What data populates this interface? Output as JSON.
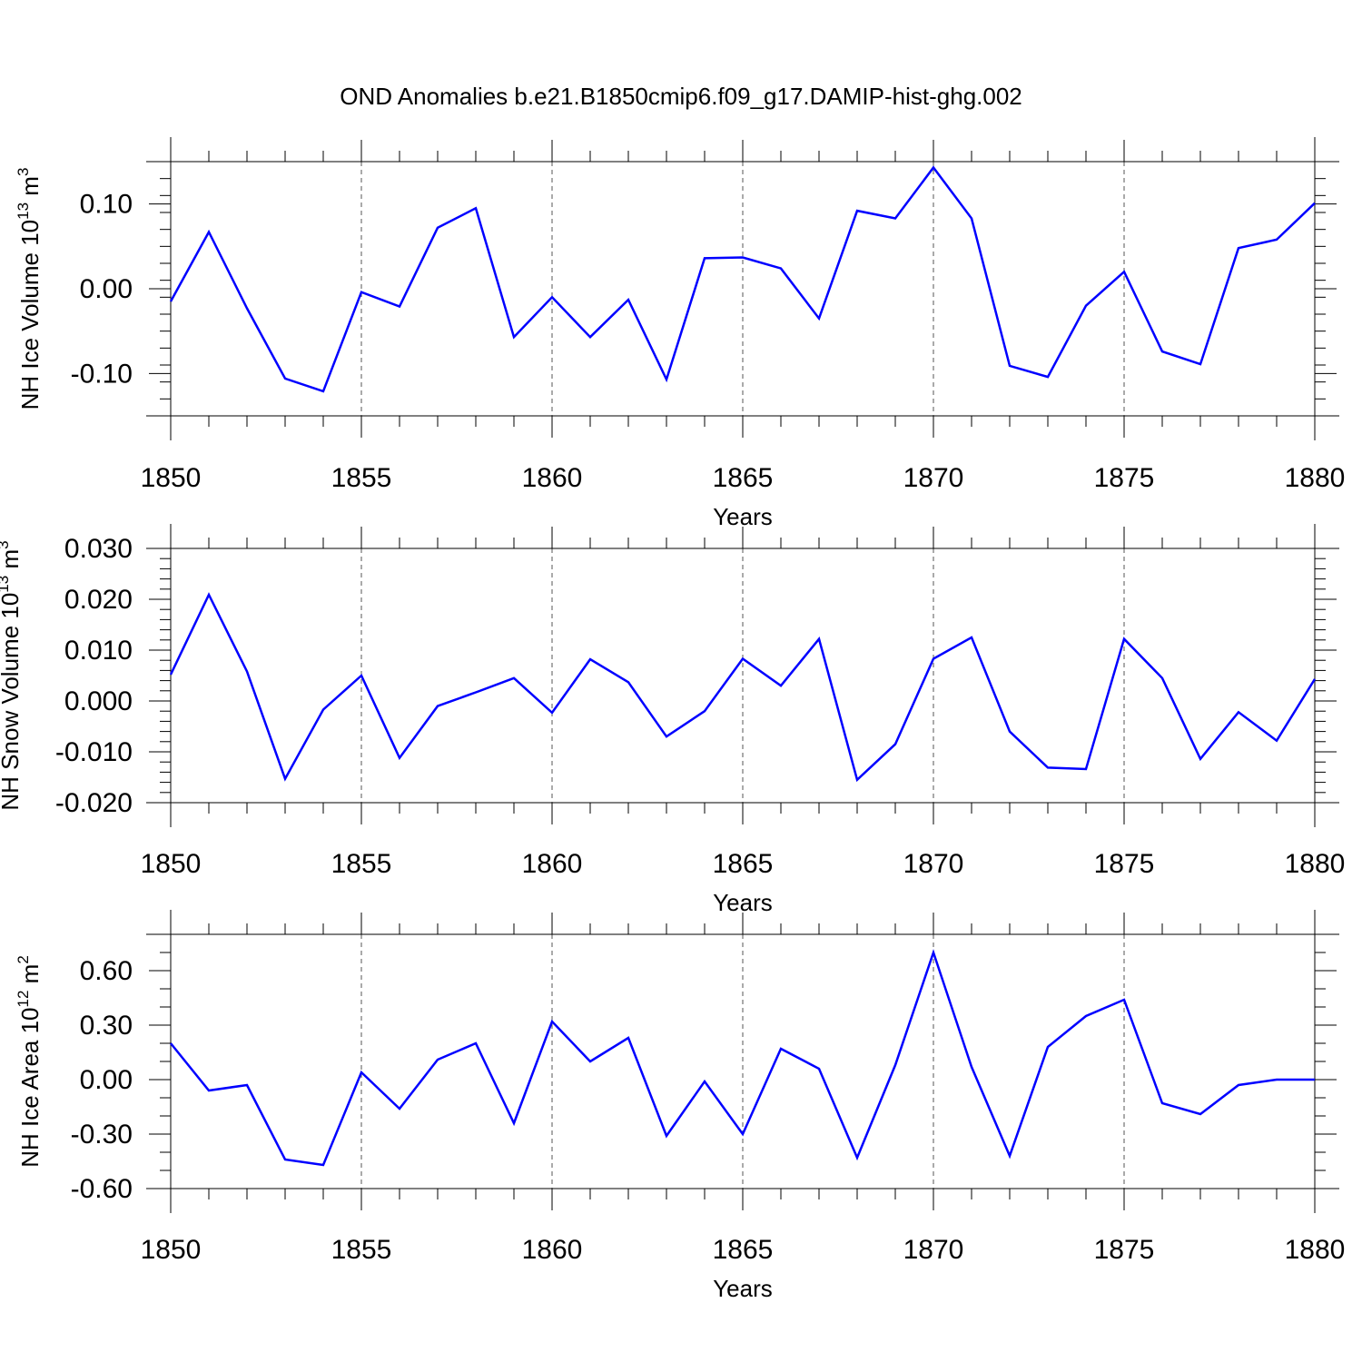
{
  "title": "OND Anomalies b.e21.B1850cmip6.f09_g17.DAMIP-hist-ghg.002",
  "line_color": "#0000ff",
  "chart_data": [
    {
      "type": "line",
      "xlabel": "Years",
      "ylabel": {
        "prefix": "NH Ice Volume 10",
        "exp": "13",
        "unit": " m",
        "unit_exp": "3"
      },
      "xlim": [
        1850,
        1880
      ],
      "ylim": [
        -0.15,
        0.15
      ],
      "grid": "vertical dashed at x major ticks",
      "xticks": [
        "1850",
        "1855",
        "1860",
        "1865",
        "1870",
        "1875",
        "1880"
      ],
      "yticks": [
        {
          "v": 0.1,
          "label": "0.10"
        },
        {
          "v": 0.0,
          "label": "0.00"
        },
        {
          "v": -0.1,
          "label": "-0.10"
        }
      ],
      "minor_y_step": 0.02,
      "x": [
        1850,
        1851,
        1852,
        1853,
        1854,
        1855,
        1856,
        1857,
        1858,
        1859,
        1860,
        1861,
        1862,
        1863,
        1864,
        1865,
        1866,
        1867,
        1868,
        1869,
        1870,
        1871,
        1872,
        1873,
        1874,
        1875,
        1876,
        1877,
        1878,
        1879,
        1880
      ],
      "y": [
        -0.015,
        0.067,
        -0.023,
        -0.106,
        -0.121,
        -0.004,
        -0.021,
        0.072,
        0.095,
        -0.057,
        -0.01,
        -0.057,
        -0.013,
        -0.107,
        0.036,
        0.037,
        0.024,
        -0.035,
        0.092,
        0.083,
        0.143,
        0.083,
        -0.091,
        -0.104,
        -0.02,
        0.02,
        -0.074,
        -0.089,
        0.048,
        0.058,
        0.101
      ]
    },
    {
      "type": "line",
      "xlabel": "Years",
      "ylabel": {
        "prefix": "NH Snow Volume 10",
        "exp": "13",
        "unit": " m",
        "unit_exp": "3"
      },
      "xlim": [
        1850,
        1880
      ],
      "ylim": [
        -0.02,
        0.03
      ],
      "grid": "vertical dashed at x major ticks",
      "xticks": [
        "1850",
        "1855",
        "1860",
        "1865",
        "1870",
        "1875",
        "1880"
      ],
      "yticks": [
        {
          "v": 0.03,
          "label": "0.030"
        },
        {
          "v": 0.02,
          "label": "0.020"
        },
        {
          "v": 0.01,
          "label": "0.010"
        },
        {
          "v": 0.0,
          "label": "0.000"
        },
        {
          "v": -0.01,
          "label": "-0.010"
        },
        {
          "v": -0.02,
          "label": "-0.020"
        }
      ],
      "minor_y_step": 0.002,
      "x": [
        1850,
        1851,
        1852,
        1853,
        1854,
        1855,
        1856,
        1857,
        1858,
        1859,
        1860,
        1861,
        1862,
        1863,
        1864,
        1865,
        1866,
        1867,
        1868,
        1869,
        1870,
        1871,
        1872,
        1873,
        1874,
        1875,
        1876,
        1877,
        1878,
        1879,
        1880
      ],
      "y": [
        0.0052,
        0.0209,
        0.0058,
        -0.0153,
        -0.0017,
        0.005,
        -0.0112,
        -0.001,
        0.0017,
        0.0045,
        -0.0023,
        0.0082,
        0.0037,
        -0.007,
        -0.002,
        0.0083,
        0.003,
        0.0122,
        -0.0155,
        -0.0085,
        0.0083,
        0.0125,
        -0.006,
        -0.0131,
        -0.0134,
        0.0122,
        0.0045,
        -0.0114,
        -0.0022,
        -0.0078,
        0.0043
      ]
    },
    {
      "type": "line",
      "xlabel": "Years",
      "ylabel": {
        "prefix": "NH Ice Area 10",
        "exp": "12",
        "unit": " m",
        "unit_exp": "2"
      },
      "xlim": [
        1850,
        1880
      ],
      "ylim": [
        -0.6,
        0.8
      ],
      "grid": "vertical dashed at x major ticks",
      "xticks": [
        "1850",
        "1855",
        "1860",
        "1865",
        "1870",
        "1875",
        "1880"
      ],
      "yticks": [
        {
          "v": 0.6,
          "label": "0.60"
        },
        {
          "v": 0.3,
          "label": "0.30"
        },
        {
          "v": 0.0,
          "label": "0.00"
        },
        {
          "v": -0.3,
          "label": "-0.30"
        },
        {
          "v": -0.6,
          "label": "-0.60"
        }
      ],
      "minor_y_step": 0.1,
      "x": [
        1850,
        1851,
        1852,
        1853,
        1854,
        1855,
        1856,
        1857,
        1858,
        1859,
        1860,
        1861,
        1862,
        1863,
        1864,
        1865,
        1866,
        1867,
        1868,
        1869,
        1870,
        1871,
        1872,
        1873,
        1874,
        1875,
        1876,
        1877,
        1878,
        1879,
        1880
      ],
      "y": [
        0.2,
        -0.06,
        -0.03,
        -0.44,
        -0.47,
        0.04,
        -0.16,
        0.11,
        0.2,
        -0.24,
        0.32,
        0.1,
        0.23,
        -0.31,
        -0.01,
        -0.3,
        0.17,
        0.06,
        -0.43,
        0.08,
        0.7,
        0.07,
        -0.42,
        0.18,
        0.35,
        0.44,
        -0.13,
        -0.19,
        -0.03,
        0.0,
        0.0
      ]
    }
  ]
}
